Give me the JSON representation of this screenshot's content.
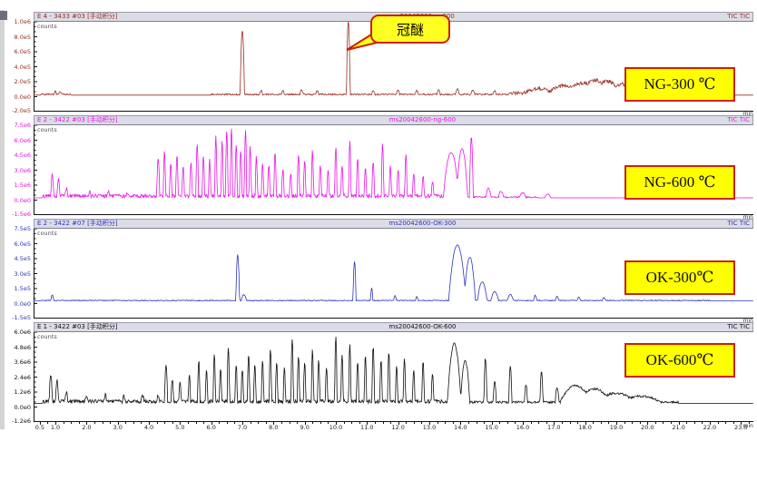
{
  "callout": {
    "text": "冠醚"
  },
  "x_axis": {
    "unit": "min",
    "start": 0.3,
    "end": 23.4,
    "tick_labels": [
      "0.5",
      "1.0",
      "2.0",
      "3.0",
      "4.0",
      "5.0",
      "6.0",
      "7.0",
      "8.0",
      "9.0",
      "10.0",
      "11.0",
      "12.0",
      "13.0",
      "14.0",
      "15.0",
      "16.0",
      "17.0",
      "18.0",
      "19.0",
      "20.0",
      "21.0",
      "22.0",
      "23.0"
    ]
  },
  "colors": {
    "badge_bg": "#ffff00",
    "badge_border": "#cc2200",
    "titlebar_bg": "#dcdce6"
  },
  "panels": [
    {
      "title_left": "E 4 - 3433 #03 [手动积分]",
      "title_center": "ms20042600-ng300",
      "title_right": "TIC TIC",
      "counts_label": "counts",
      "min_label": "min",
      "badge": "NG-300 ℃",
      "color": "#9b2d22",
      "y_ticks": [
        "1.0e6",
        "8.0e5",
        "6.0e5",
        "4.0e5",
        "2.0e5",
        "0.0e0"
      ],
      "y_neg": "-2.0e5"
    },
    {
      "title_left": "E 2 - 3422 #03 [手动积分]",
      "title_center": "ms20042600-ng-600",
      "title_right": "TIC TIC",
      "counts_label": "counts",
      "min_label": "min",
      "badge": "NG-600 ℃",
      "color": "#e816e8",
      "y_ticks": [
        "7.5e6",
        "6.0e6",
        "4.5e6",
        "3.0e6",
        "1.5e6",
        "0.0e0"
      ],
      "y_neg": "-1.5e6"
    },
    {
      "title_left": "E 2 - 3422 #07 [手动积分]",
      "title_center": "ms20042600-OK-300",
      "title_right": "TIC TIC",
      "counts_label": "counts",
      "min_label": "min",
      "badge": "OK-300℃",
      "color": "#2c35bd",
      "y_ticks": [
        "7.5e5",
        "6.0e5",
        "4.5e5",
        "3.0e5",
        "1.5e5",
        "0.0e0"
      ],
      "y_neg": "-1.5e5"
    },
    {
      "title_left": "E 1 - 3422 #03 [手动积分]",
      "title_center": "ms20042600-OK-600",
      "title_right": "TIC TIC",
      "counts_label": "counts",
      "min_label": "min",
      "badge": "OK-600℃",
      "color": "#101010",
      "y_ticks": [
        "6.0e6",
        "4.8e6",
        "3.6e6",
        "2.4e6",
        "1.2e6",
        "0.0e0"
      ],
      "y_neg": "-1.2e6"
    }
  ],
  "chart_data": [
    {
      "type": "line",
      "name": "NG-300 ℃ TIC chromatogram",
      "x_unit": "min",
      "x_range": [
        0.3,
        23.4
      ],
      "ylabel": "counts",
      "grid": false,
      "baseline": 0.02,
      "annotated_peak": {
        "label": "冠醚",
        "t": 10.4
      },
      "peaks": [
        [
          1.0,
          0.05,
          0.04
        ],
        [
          1.15,
          0.04,
          0.04
        ],
        [
          7.0,
          0.85,
          0.07
        ],
        [
          7.6,
          0.05,
          0.05
        ],
        [
          8.3,
          0.05,
          0.05
        ],
        [
          8.9,
          0.06,
          0.05
        ],
        [
          9.4,
          0.05,
          0.05
        ],
        [
          10.4,
          0.98,
          0.06
        ],
        [
          11.2,
          0.05,
          0.05
        ],
        [
          12.0,
          0.06,
          0.05
        ],
        [
          12.6,
          0.05,
          0.05
        ],
        [
          13.3,
          0.06,
          0.05
        ],
        [
          13.9,
          0.07,
          0.06
        ],
        [
          14.4,
          0.06,
          0.06
        ],
        [
          15.1,
          0.05,
          0.05
        ],
        [
          16.5,
          0.06,
          0.5
        ],
        [
          17.3,
          0.1,
          0.5
        ],
        [
          17.9,
          0.14,
          0.45
        ],
        [
          18.3,
          0.18,
          0.4
        ],
        [
          18.7,
          0.16,
          0.45
        ],
        [
          19.2,
          0.12,
          0.5
        ],
        [
          19.8,
          0.08,
          0.6
        ],
        [
          20.5,
          0.05,
          0.6
        ]
      ],
      "noise": [
        [
          0.5,
          1.5,
          0.02
        ],
        [
          6.0,
          15.5,
          0.02
        ],
        [
          15.5,
          21.5,
          0.05
        ]
      ]
    },
    {
      "type": "line",
      "name": "NG-600 ℃ TIC chromatogram",
      "x_unit": "min",
      "x_range": [
        0.3,
        23.4
      ],
      "ylabel": "counts",
      "grid": false,
      "baseline": 0.03,
      "peaks": [
        [
          0.9,
          0.28,
          0.05
        ],
        [
          1.1,
          0.22,
          0.05
        ],
        [
          1.35,
          0.1,
          0.05
        ],
        [
          2.1,
          0.05,
          0.04
        ],
        [
          2.7,
          0.06,
          0.04
        ],
        [
          3.3,
          0.05,
          0.04
        ],
        [
          4.3,
          0.5,
          0.05
        ],
        [
          4.5,
          0.62,
          0.04
        ],
        [
          4.7,
          0.45,
          0.04
        ],
        [
          4.9,
          0.55,
          0.04
        ],
        [
          5.1,
          0.38,
          0.04
        ],
        [
          5.35,
          0.45,
          0.04
        ],
        [
          5.55,
          0.72,
          0.04
        ],
        [
          5.75,
          0.55,
          0.04
        ],
        [
          5.95,
          0.48,
          0.04
        ],
        [
          6.15,
          0.8,
          0.04
        ],
        [
          6.35,
          0.72,
          0.04
        ],
        [
          6.5,
          0.88,
          0.04
        ],
        [
          6.65,
          0.92,
          0.04
        ],
        [
          6.8,
          0.7,
          0.04
        ],
        [
          6.95,
          0.62,
          0.04
        ],
        [
          7.1,
          0.9,
          0.04
        ],
        [
          7.25,
          0.66,
          0.04
        ],
        [
          7.45,
          0.52,
          0.04
        ],
        [
          7.65,
          0.45,
          0.04
        ],
        [
          7.85,
          0.42,
          0.04
        ],
        [
          8.05,
          0.6,
          0.04
        ],
        [
          8.3,
          0.36,
          0.04
        ],
        [
          8.55,
          0.3,
          0.04
        ],
        [
          8.8,
          0.55,
          0.04
        ],
        [
          9.0,
          0.45,
          0.04
        ],
        [
          9.25,
          0.62,
          0.04
        ],
        [
          9.5,
          0.4,
          0.04
        ],
        [
          9.75,
          0.35,
          0.04
        ],
        [
          10.0,
          0.66,
          0.04
        ],
        [
          10.2,
          0.42,
          0.04
        ],
        [
          10.45,
          0.75,
          0.04
        ],
        [
          10.7,
          0.5,
          0.04
        ],
        [
          10.95,
          0.36,
          0.04
        ],
        [
          11.2,
          0.46,
          0.04
        ],
        [
          11.5,
          0.68,
          0.04
        ],
        [
          11.75,
          0.4,
          0.04
        ],
        [
          12.0,
          0.35,
          0.04
        ],
        [
          12.25,
          0.55,
          0.04
        ],
        [
          12.5,
          0.3,
          0.04
        ],
        [
          12.8,
          0.25,
          0.04
        ],
        [
          13.1,
          0.2,
          0.04
        ],
        [
          13.7,
          0.6,
          0.25
        ],
        [
          14.05,
          0.65,
          0.18
        ],
        [
          14.35,
          0.8,
          0.06
        ],
        [
          14.9,
          0.12,
          0.08
        ],
        [
          15.3,
          0.08,
          0.08
        ],
        [
          16.0,
          0.06,
          0.1
        ],
        [
          16.8,
          0.05,
          0.1
        ]
      ],
      "noise": [
        [
          0.6,
          13.4,
          0.05
        ],
        [
          13.4,
          16.5,
          0.02
        ]
      ]
    },
    {
      "type": "line",
      "name": "OK-300℃ TIC chromatogram",
      "x_unit": "min",
      "x_range": [
        0.3,
        23.4
      ],
      "ylabel": "counts",
      "grid": false,
      "baseline": 0.035,
      "peaks": [
        [
          0.9,
          0.07,
          0.05
        ],
        [
          6.85,
          0.62,
          0.06
        ],
        [
          7.05,
          0.08,
          0.08
        ],
        [
          10.6,
          0.52,
          0.05
        ],
        [
          11.15,
          0.17,
          0.04
        ],
        [
          11.9,
          0.07,
          0.04
        ],
        [
          12.6,
          0.05,
          0.04
        ],
        [
          13.9,
          0.74,
          0.28
        ],
        [
          14.3,
          0.58,
          0.18
        ],
        [
          14.7,
          0.25,
          0.15
        ],
        [
          15.1,
          0.12,
          0.12
        ],
        [
          15.6,
          0.08,
          0.1
        ],
        [
          16.4,
          0.07,
          0.05
        ],
        [
          17.1,
          0.06,
          0.05
        ],
        [
          17.8,
          0.05,
          0.05
        ],
        [
          18.6,
          0.04,
          0.05
        ]
      ],
      "noise": [
        [
          0.5,
          22.0,
          0.012
        ]
      ]
    },
    {
      "type": "line",
      "name": "OK-600℃ TIC chromatogram",
      "x_unit": "min",
      "x_range": [
        0.3,
        23.4
      ],
      "ylabel": "counts",
      "grid": false,
      "baseline": 0.05,
      "peaks": [
        [
          0.85,
          0.36,
          0.05
        ],
        [
          1.05,
          0.28,
          0.05
        ],
        [
          1.35,
          0.12,
          0.05
        ],
        [
          2.0,
          0.07,
          0.05
        ],
        [
          2.6,
          0.09,
          0.05
        ],
        [
          3.2,
          0.07,
          0.05
        ],
        [
          3.8,
          0.08,
          0.05
        ],
        [
          4.3,
          0.07,
          0.05
        ],
        [
          4.55,
          0.48,
          0.05
        ],
        [
          4.75,
          0.3,
          0.04
        ],
        [
          5.0,
          0.26,
          0.04
        ],
        [
          5.3,
          0.35,
          0.04
        ],
        [
          5.6,
          0.55,
          0.04
        ],
        [
          5.85,
          0.4,
          0.04
        ],
        [
          6.1,
          0.65,
          0.04
        ],
        [
          6.3,
          0.45,
          0.04
        ],
        [
          6.55,
          0.72,
          0.04
        ],
        [
          6.8,
          0.5,
          0.04
        ],
        [
          7.0,
          0.42,
          0.04
        ],
        [
          7.2,
          0.62,
          0.04
        ],
        [
          7.4,
          0.48,
          0.04
        ],
        [
          7.65,
          0.56,
          0.04
        ],
        [
          7.9,
          0.7,
          0.04
        ],
        [
          8.1,
          0.52,
          0.04
        ],
        [
          8.35,
          0.46,
          0.04
        ],
        [
          8.6,
          0.85,
          0.04
        ],
        [
          8.8,
          0.6,
          0.04
        ],
        [
          9.0,
          0.5,
          0.04
        ],
        [
          9.25,
          0.7,
          0.04
        ],
        [
          9.45,
          0.55,
          0.04
        ],
        [
          9.7,
          0.46,
          0.04
        ],
        [
          10.0,
          0.88,
          0.04
        ],
        [
          10.2,
          0.64,
          0.04
        ],
        [
          10.45,
          0.78,
          0.04
        ],
        [
          10.7,
          0.52,
          0.04
        ],
        [
          10.95,
          0.6,
          0.04
        ],
        [
          11.2,
          0.74,
          0.04
        ],
        [
          11.45,
          0.56,
          0.04
        ],
        [
          11.7,
          0.64,
          0.04
        ],
        [
          11.95,
          0.46,
          0.04
        ],
        [
          12.2,
          0.56,
          0.04
        ],
        [
          12.5,
          0.42,
          0.04
        ],
        [
          12.8,
          0.52,
          0.04
        ],
        [
          13.1,
          0.38,
          0.04
        ],
        [
          13.8,
          0.78,
          0.22
        ],
        [
          14.15,
          0.55,
          0.15
        ],
        [
          14.8,
          0.58,
          0.05
        ],
        [
          15.1,
          0.28,
          0.05
        ],
        [
          15.6,
          0.48,
          0.05
        ],
        [
          16.1,
          0.24,
          0.05
        ],
        [
          16.6,
          0.42,
          0.05
        ],
        [
          17.1,
          0.2,
          0.06
        ],
        [
          17.7,
          0.22,
          0.5
        ],
        [
          18.3,
          0.18,
          0.5
        ],
        [
          19.0,
          0.12,
          0.6
        ],
        [
          19.8,
          0.08,
          0.6
        ]
      ],
      "noise": [
        [
          0.6,
          13.5,
          0.05
        ],
        [
          13.5,
          17.5,
          0.03
        ],
        [
          17.5,
          21.0,
          0.03
        ]
      ]
    }
  ]
}
